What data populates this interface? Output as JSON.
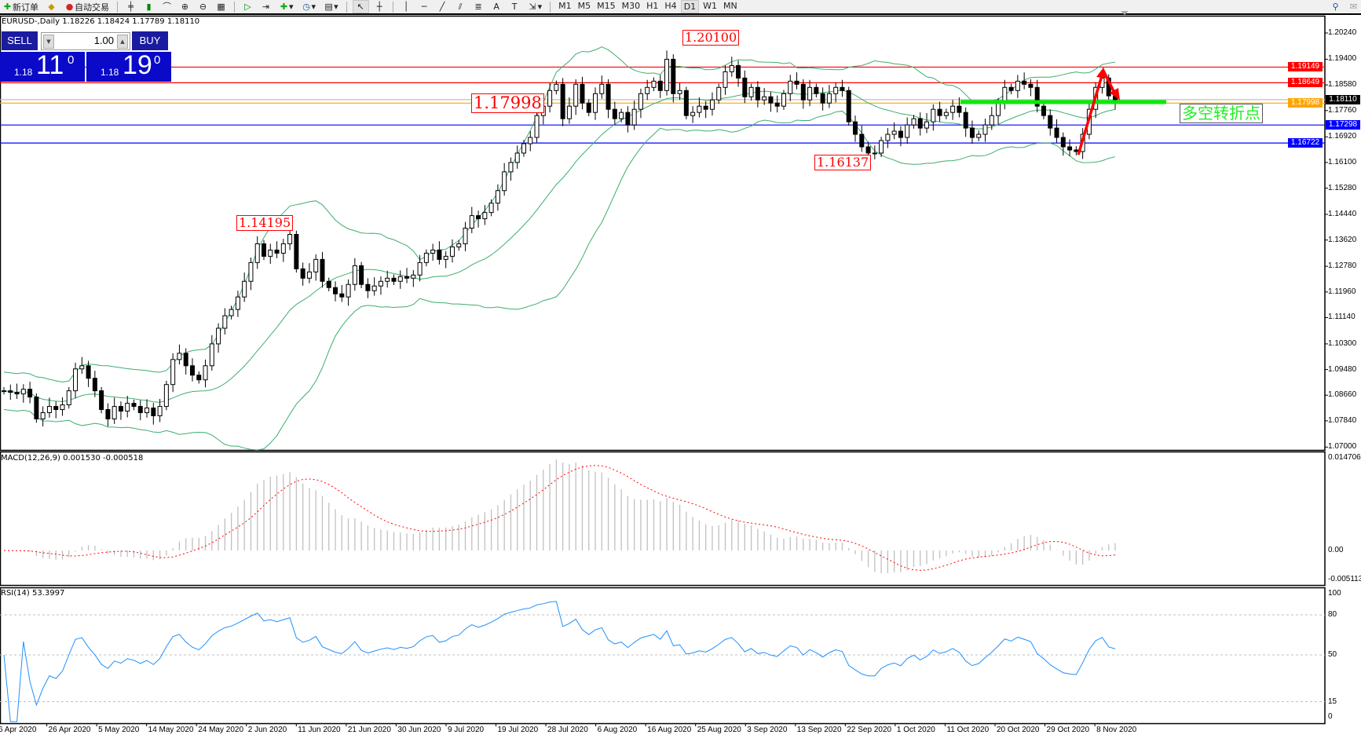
{
  "toolbar": {
    "new_order": "新订单",
    "auto_trading": "自动交易",
    "timeframes": [
      "M1",
      "M5",
      "M15",
      "M30",
      "H1",
      "H4",
      "D1",
      "W1",
      "MN"
    ],
    "active_timeframe": "D1"
  },
  "chart": {
    "symbol_line": "EURUSD-,Daily  1.18226 1.18424 1.17789 1.18110",
    "last_bar": {
      "open": 1.18226,
      "high": 1.18424,
      "low": 1.17789,
      "close": 1.1811
    }
  },
  "trade_panel": {
    "sell_label": "SELL",
    "buy_label": "BUY",
    "lot": "1.00",
    "sell_prefix": "1.18",
    "sell_big": "11",
    "sell_sup": "0",
    "buy_prefix": "1.18",
    "buy_big": "19",
    "buy_sup": "0"
  },
  "annotations": {
    "high_label": "1.20100",
    "pivot_label": "1.17998",
    "low_label": "1.16137",
    "june_high_label": "1.14195",
    "note": "多空转折点"
  },
  "hlines": [
    {
      "price": "1.19149",
      "color": "#ff0000"
    },
    {
      "price": "1.18649",
      "color": "#ff0000"
    },
    {
      "price": "1.18110",
      "color": "#c0c0c0"
    },
    {
      "price": "1.17998",
      "color": "#ffa500"
    },
    {
      "price": "1.17298",
      "color": "#0000ff"
    },
    {
      "price": "1.16722",
      "color": "#0000ff"
    }
  ],
  "price_axis": [
    "1.20240",
    "1.19400",
    "1.18580",
    "1.17760",
    "1.16920",
    "1.16100",
    "1.15280",
    "1.14440",
    "1.13620",
    "1.12780",
    "1.11960",
    "1.11140",
    "1.10300",
    "1.09480",
    "1.08660",
    "1.07840",
    "1.07000"
  ],
  "macd": {
    "label": "MACD(12,26,9) 0.001530 -0.000518",
    "axis": [
      "0.014706",
      "0.00",
      "-0.005113"
    ],
    "range": [
      -0.005113,
      0.014706
    ]
  },
  "rsi": {
    "label": "RSI(14) 53.3997",
    "axis": [
      "100",
      "80",
      "50",
      "15",
      "0"
    ],
    "levels": [
      80,
      50,
      15
    ]
  },
  "dates": [
    "6 Apr 2020",
    "26 Apr 2020",
    "5 May 2020",
    "14 May 2020",
    "24 May 2020",
    "2 Jun 2020",
    "11 Jun 2020",
    "21 Jun 2020",
    "30 Jun 2020",
    "9 Jul 2020",
    "19 Jul 2020",
    "28 Jul 2020",
    "6 Aug 2020",
    "16 Aug 2020",
    "25 Aug 2020",
    "3 Sep 2020",
    "13 Sep 2020",
    "22 Sep 2020",
    "1 Oct 2020",
    "11 Oct 2020",
    "20 Oct 2020",
    "29 Oct 2020",
    "8 Nov 2020"
  ],
  "colors": {
    "bands": "#3cae6e",
    "macd_hist": "#c0c0c0",
    "macd_signal": "#ff0000",
    "rsi": "#1e90ff",
    "pivot_line": "#00ee00",
    "arrow": "#ff0000"
  },
  "chart_data": {
    "type": "candlestick",
    "price_range": [
      1.07,
      1.2024
    ],
    "closes": [
      1.088,
      1.0875,
      1.087,
      1.0885,
      1.086,
      1.079,
      1.081,
      1.083,
      1.082,
      1.0835,
      1.088,
      1.095,
      1.096,
      1.092,
      1.088,
      1.082,
      1.079,
      1.083,
      1.0815,
      1.084,
      1.083,
      1.081,
      1.0825,
      1.08,
      1.083,
      1.09,
      1.098,
      1.1,
      1.096,
      1.093,
      1.0915,
      1.096,
      1.103,
      1.108,
      1.112,
      1.114,
      1.118,
      1.123,
      1.129,
      1.135,
      1.131,
      1.133,
      1.132,
      1.135,
      1.138,
      1.127,
      1.124,
      1.126,
      1.13,
      1.123,
      1.121,
      1.119,
      1.118,
      1.122,
      1.128,
      1.122,
      1.12,
      1.1215,
      1.123,
      1.124,
      1.123,
      1.1245,
      1.124,
      1.125,
      1.129,
      1.132,
      1.133,
      1.13,
      1.131,
      1.134,
      1.135,
      1.14,
      1.144,
      1.143,
      1.145,
      1.148,
      1.152,
      1.158,
      1.161,
      1.164,
      1.167,
      1.169,
      1.176,
      1.179,
      1.184,
      1.186,
      1.175,
      1.179,
      1.186,
      1.18,
      1.177,
      1.183,
      1.186,
      1.178,
      1.175,
      1.177,
      1.173,
      1.178,
      1.183,
      1.185,
      1.187,
      1.184,
      1.194,
      1.183,
      1.184,
      1.176,
      1.177,
      1.179,
      1.178,
      1.181,
      1.185,
      1.19,
      1.192,
      1.188,
      1.182,
      1.185,
      1.181,
      1.182,
      1.18,
      1.179,
      1.183,
      1.187,
      1.186,
      1.181,
      1.185,
      1.183,
      1.18,
      1.183,
      1.185,
      1.184,
      1.174,
      1.17,
      1.166,
      1.164,
      1.164,
      1.168,
      1.17,
      1.171,
      1.169,
      1.173,
      1.175,
      1.172,
      1.174,
      1.178,
      1.176,
      1.177,
      1.179,
      1.177,
      1.172,
      1.169,
      1.17,
      1.173,
      1.176,
      1.18,
      1.185,
      1.184,
      1.187,
      1.186,
      1.185,
      1.179,
      1.176,
      1.172,
      1.169,
      1.166,
      1.165,
      1.1645,
      1.17,
      1.178,
      1.185,
      1.188,
      1.1823,
      1.1811
    ],
    "indicators": [
      "Bollinger Bands(20,2)",
      "MACD(12,26,9)",
      "RSI(14)"
    ]
  }
}
